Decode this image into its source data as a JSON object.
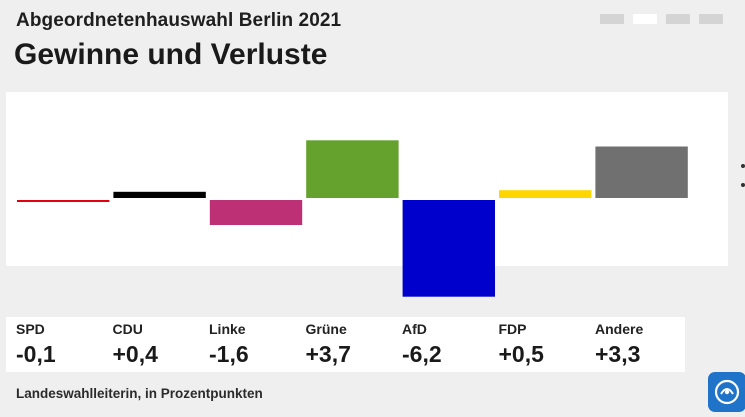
{
  "header": {
    "subtitle": "Abgeordnetenhauswahl Berlin 2021",
    "title": "Gewinne und Verluste"
  },
  "pager": {
    "count": 4,
    "active_index": 1
  },
  "chart_data": {
    "type": "bar",
    "title": "Gewinne und Verluste",
    "subtitle": "Abgeordnetenhauswahl Berlin 2021",
    "ylabel": "Prozentpunkte",
    "ylim": [
      -6.2,
      3.7
    ],
    "categories": [
      "SPD",
      "CDU",
      "Linke",
      "Grüne",
      "AfD",
      "FDP",
      "Andere"
    ],
    "values": [
      -0.1,
      0.4,
      -1.6,
      3.7,
      -6.2,
      0.5,
      3.3
    ],
    "labels": [
      "-0,1",
      "+0,4",
      "-1,6",
      "+3,7",
      "-6,2",
      "+0,5",
      "+3,3"
    ],
    "colors": [
      "#e3000f",
      "#000000",
      "#be3075",
      "#64a12d",
      "#0000cc",
      "#ffd600",
      "#707070"
    ]
  },
  "footer": {
    "source": "Landeswahlleiterin, in Prozentpunkten"
  },
  "icons": {
    "next": "chevron-right-icon",
    "logo": "ard-logo-icon"
  }
}
